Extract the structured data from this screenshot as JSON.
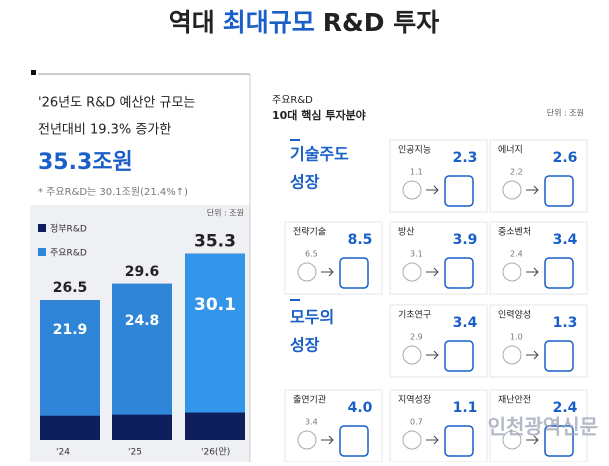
{
  "header": {
    "title_parts": [
      "역대",
      "최대규모",
      "R&D 투자"
    ]
  },
  "left": {
    "lines": [
      "'26년도 R&D 예산안 규모는",
      "전년대비 19.3% 증가한"
    ],
    "highlight": "35.3조원",
    "note": "* 주요R&D는 30.1조원(21.4%↑)"
  },
  "chart_data": {
    "type": "bar",
    "unit": "단위 : 조원",
    "categories": [
      "'24",
      "'25",
      "'26(안)"
    ],
    "series": [
      {
        "name": "정부R&D",
        "color": "#0e1f5b",
        "values": [
          26.5,
          29.6,
          35.3
        ]
      },
      {
        "name": "주요R&D",
        "color": "#2f86d8",
        "values": [
          21.9,
          24.8,
          30.1
        ]
      }
    ],
    "ylim": [
      0,
      36
    ]
  },
  "right": {
    "heading": [
      "주요R&D",
      "10대 핵심 투자분야"
    ],
    "unit": "단위 : 조원",
    "sections": [
      [
        "기술주도",
        "성장"
      ],
      [
        "모두의",
        "성장"
      ]
    ],
    "cards": [
      {
        "name": "인공지능",
        "from": "1.1",
        "to": "2.3"
      },
      {
        "name": "에너지",
        "from": "2.2",
        "to": "2.6"
      },
      {
        "name": "전략기술",
        "from": "6.5",
        "to": "8.5"
      },
      {
        "name": "방산",
        "from": "3.1",
        "to": "3.9"
      },
      {
        "name": "중소벤처",
        "from": "2.4",
        "to": "3.4"
      },
      {
        "name": "기초연구",
        "from": "2.9",
        "to": "3.4"
      },
      {
        "name": "인력양성",
        "from": "1.0",
        "to": "1.3"
      },
      {
        "name": "출연기관",
        "from": "3.4",
        "to": "4.0"
      },
      {
        "name": "지역성장",
        "from": "0.7",
        "to": "1.1"
      },
      {
        "name": "재난안전",
        "to": "2.4"
      }
    ]
  },
  "watermark": "인천광역신문"
}
